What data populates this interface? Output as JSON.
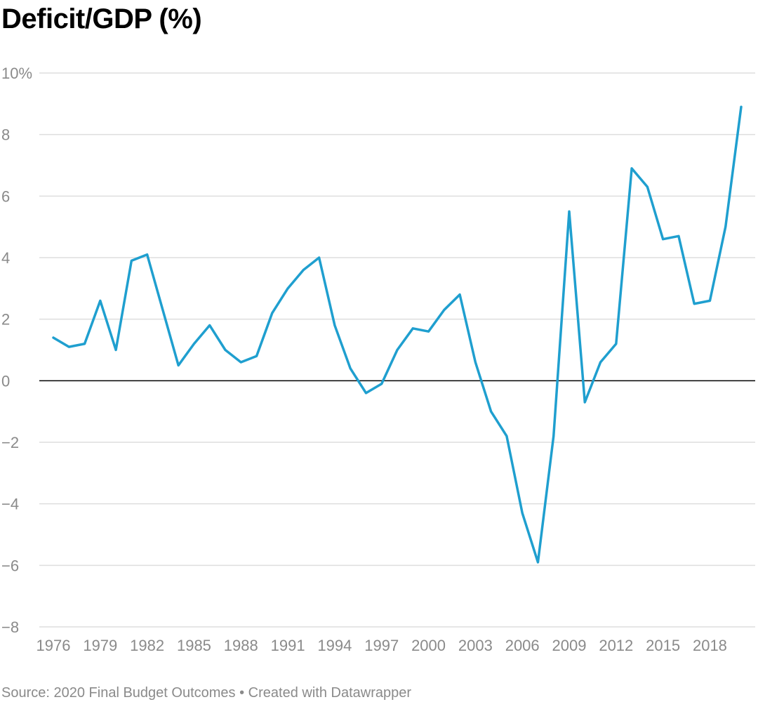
{
  "title": "Deficit/GDP (%)",
  "footer": {
    "source": "Source: 2020 Final Budget Outcomes",
    "separator": "•",
    "credit": "Created with Datawrapper"
  },
  "colors": {
    "line": "#1f9fcf",
    "grid": "#dedede",
    "zero_line": "#000000",
    "tick_text": "#8a8a8a"
  },
  "chart_data": {
    "type": "line",
    "title": "Deficit/GDP (%)",
    "xlabel": "",
    "ylabel": "",
    "ylim": [
      -8,
      10
    ],
    "yticks": [
      -8,
      -6,
      -4,
      -2,
      0,
      2,
      4,
      6,
      8,
      10
    ],
    "ytick_labels": [
      "−8",
      "−6",
      "−4",
      "−2",
      "0",
      "2",
      "4",
      "6",
      "8",
      "10%"
    ],
    "xlim": [
      1976,
      2020
    ],
    "xticks": [
      1976,
      1979,
      1982,
      1985,
      1988,
      1991,
      1994,
      1997,
      2000,
      2003,
      2006,
      2009,
      2012,
      2015,
      2018
    ],
    "xtick_labels": [
      "1976",
      "1979",
      "1982",
      "1985",
      "1988",
      "1991",
      "1994",
      "1997",
      "2000",
      "2003",
      "2006",
      "2009",
      "2012",
      "2015",
      "2018"
    ],
    "grid": true,
    "series": [
      {
        "name": "Deficit/GDP (%)",
        "x": [
          1976,
          1977,
          1978,
          1979,
          1980,
          1981,
          1982,
          1983,
          1984,
          1985,
          1986,
          1987,
          1988,
          1989,
          1990,
          1991,
          1992,
          1993,
          1994,
          1995,
          1996,
          1997,
          1998,
          1999,
          2000,
          2001,
          2002,
          2003,
          2004,
          2005,
          2006,
          2007,
          2008,
          2009,
          2010,
          2011,
          2012,
          2013,
          2014,
          2015,
          2016,
          2017,
          2018,
          2019,
          2020
        ],
        "values": [
          1.4,
          1.1,
          1.2,
          2.6,
          1.0,
          3.9,
          4.1,
          2.3,
          0.5,
          1.2,
          1.8,
          1.0,
          0.6,
          0.8,
          2.2,
          3.0,
          3.6,
          4.0,
          1.8,
          0.4,
          -0.4,
          -0.1,
          1.0,
          1.7,
          1.6,
          2.3,
          2.8,
          0.6,
          -1.0,
          -1.8,
          -4.3,
          -5.9,
          -1.8,
          5.5,
          -0.7,
          0.6,
          1.2,
          6.9,
          6.3,
          4.6,
          4.7,
          2.5,
          2.6,
          5.0,
          8.9
        ]
      }
    ]
  }
}
